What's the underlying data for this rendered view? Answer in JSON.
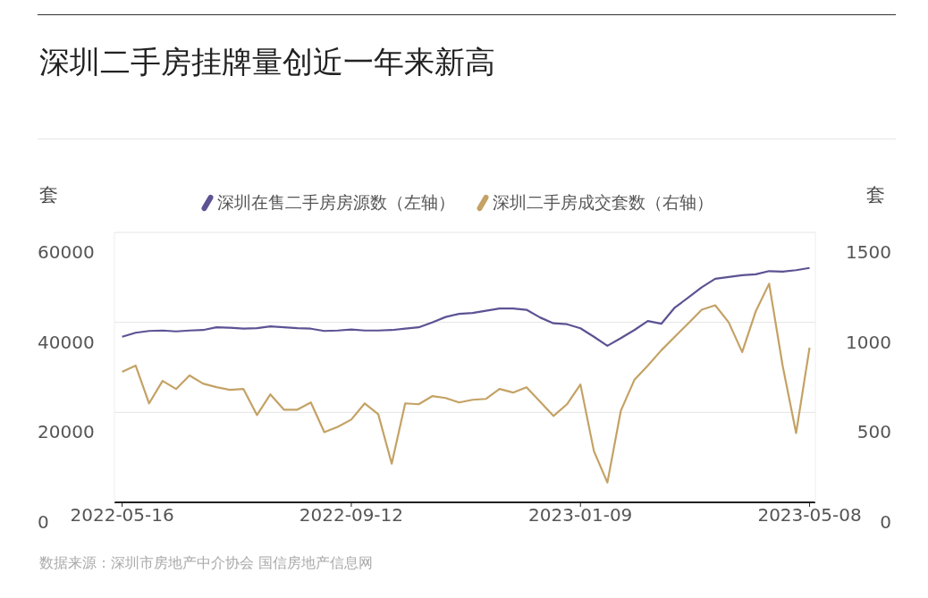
{
  "chart_data": {
    "type": "line",
    "title": "深圳二手房挂牌量创近一年来新高",
    "ylabel": "套",
    "y2label": "套",
    "x": [
      "2022-05-16",
      "2022-05-23",
      "2022-05-30",
      "2022-06-06",
      "2022-06-13",
      "2022-06-20",
      "2022-06-27",
      "2022-07-04",
      "2022-07-11",
      "2022-07-18",
      "2022-07-25",
      "2022-08-01",
      "2022-08-08",
      "2022-08-15",
      "2022-08-22",
      "2022-08-29",
      "2022-09-05",
      "2022-09-12",
      "2022-09-19",
      "2022-09-26",
      "2022-10-03",
      "2022-10-10",
      "2022-10-17",
      "2022-10-24",
      "2022-10-31",
      "2022-11-07",
      "2022-11-14",
      "2022-11-21",
      "2022-11-28",
      "2022-12-05",
      "2022-12-12",
      "2022-12-19",
      "2022-12-26",
      "2023-01-02",
      "2023-01-09",
      "2023-01-16",
      "2023-01-23",
      "2023-01-30",
      "2023-02-06",
      "2023-02-13",
      "2023-02-20",
      "2023-02-27",
      "2023-03-06",
      "2023-03-13",
      "2023-03-20",
      "2023-03-27",
      "2023-04-03",
      "2023-04-10",
      "2023-04-17",
      "2023-04-24",
      "2023-05-01",
      "2023-05-08"
    ],
    "series": [
      {
        "name": "深圳在售二手房房源数（左轴）",
        "color": "#5b5393",
        "values": [
          36800,
          37700,
          38100,
          38200,
          38000,
          38200,
          38300,
          38900,
          38800,
          38600,
          38700,
          39100,
          38900,
          38700,
          38600,
          38100,
          38200,
          38400,
          38200,
          38200,
          38300,
          38600,
          38900,
          40000,
          41200,
          41900,
          42100,
          42600,
          43100,
          43100,
          42800,
          41100,
          39800,
          39600,
          38700,
          36800,
          34800,
          36500,
          38300,
          40300,
          39700,
          43300,
          45500,
          47800,
          49700,
          50100,
          50500,
          50700,
          51400,
          51300,
          51600,
          52100
        ]
      },
      {
        "name": "深圳二手房成交套数（右轴）",
        "color": "#c4a265",
        "axis": "y2",
        "values": [
          725,
          760,
          550,
          675,
          630,
          705,
          660,
          640,
          625,
          630,
          485,
          600,
          515,
          515,
          555,
          390,
          420,
          460,
          550,
          490,
          215,
          550,
          545,
          590,
          580,
          555,
          570,
          575,
          630,
          610,
          640,
          560,
          480,
          545,
          655,
          285,
          110,
          510,
          680,
          760,
          845,
          920,
          995,
          1070,
          1095,
          1000,
          835,
          1060,
          1215,
          760,
          385,
          860
        ]
      }
    ],
    "xlim": [
      "2022-05-12",
      "2023-05-11"
    ],
    "xticks": [
      "2022-05-16",
      "2022-09-12",
      "2023-01-09",
      "2023-05-08"
    ],
    "ylim": [
      0,
      60000
    ],
    "yticks": [
      0,
      20000,
      40000,
      60000
    ],
    "y2lim": [
      0,
      1500
    ],
    "y2ticks": [
      0,
      500,
      1000,
      1500
    ],
    "grid": "y",
    "legend": "top",
    "annotations": [
      "数据来源：深圳市房地产中介协会 国信房地产信息网"
    ]
  }
}
